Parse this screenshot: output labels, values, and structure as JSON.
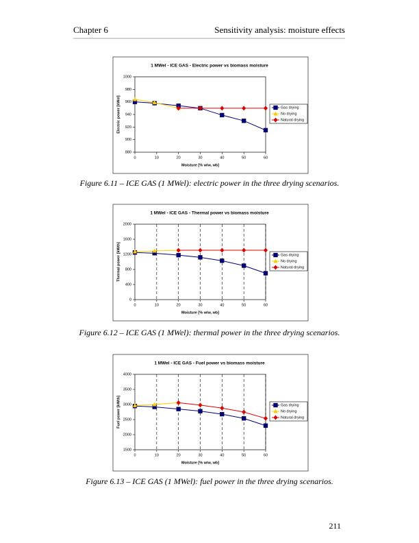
{
  "header": {
    "chapter": "Chapter 6",
    "section": "Sensitivity analysis: moisture effects"
  },
  "chart_data": [
    {
      "type": "line",
      "title": "1 MWel - ICE GAS - Electric power vs biomass moisture",
      "xlabel": "Moisture [% w/w, wb]",
      "ylabel": "Electric power [kWel]",
      "x": [
        0,
        9,
        20,
        30,
        40,
        50,
        60
      ],
      "xlim": [
        0,
        60
      ],
      "xticks": [
        0,
        10,
        20,
        30,
        40,
        50,
        60
      ],
      "ylim": [
        880,
        1000
      ],
      "yticks": [
        880,
        900,
        920,
        940,
        960,
        980,
        1000
      ],
      "xgrid": false,
      "legend": "right",
      "series": [
        {
          "name": "Gas drying",
          "color": "#000080",
          "marker": "square",
          "values": [
            960,
            958,
            954,
            950,
            939,
            930,
            915
          ]
        },
        {
          "name": "No drying",
          "color": "#ffcc00",
          "marker": "triangle",
          "values": [
            964,
            959,
            950,
            null,
            null,
            null,
            null
          ]
        },
        {
          "name": "Natural drying",
          "color": "#e00000",
          "marker": "diamond",
          "values": [
            null,
            null,
            950,
            950,
            950,
            950,
            950
          ]
        }
      ]
    },
    {
      "type": "line",
      "title": "1 MWel - ICE GAS - Thermal power vs biomass moisture",
      "xlabel": "Moisture [% w/w, wb]",
      "ylabel": "Thermal power [kWth]",
      "x": [
        0,
        9,
        20,
        30,
        40,
        50,
        60
      ],
      "xlim": [
        0,
        60
      ],
      "xticks": [
        0,
        10,
        20,
        30,
        40,
        50,
        60
      ],
      "ylim": [
        0,
        2000
      ],
      "yticks": [
        0,
        400,
        800,
        1200,
        1600,
        2000
      ],
      "xgrid": true,
      "legend": "right",
      "series": [
        {
          "name": "Gas drying",
          "color": "#000080",
          "marker": "square",
          "values": [
            1250,
            1230,
            1180,
            1120,
            1030,
            900,
            700
          ]
        },
        {
          "name": "No drying",
          "color": "#ffcc00",
          "marker": "triangle",
          "values": [
            1270,
            1290,
            1310,
            null,
            null,
            null,
            null
          ]
        },
        {
          "name": "Natural drying",
          "color": "#e00000",
          "marker": "diamond",
          "values": [
            null,
            null,
            1310,
            1310,
            1310,
            1310,
            1310
          ]
        }
      ]
    },
    {
      "type": "line",
      "title": "1 MWel - ICE GAS - Fuel power vs biomass moisture",
      "xlabel": "Moisture [% w/w, wb]",
      "ylabel": "Fuel power [kWth]",
      "x": [
        0,
        9,
        20,
        30,
        40,
        50,
        60
      ],
      "xlim": [
        0,
        60
      ],
      "xticks": [
        0,
        10,
        20,
        30,
        40,
        50,
        60
      ],
      "ylim": [
        1500,
        4000
      ],
      "yticks": [
        1500,
        2000,
        2500,
        3000,
        3500,
        4000
      ],
      "xgrid": true,
      "legend": "right",
      "series": [
        {
          "name": "Gas drying",
          "color": "#000080",
          "marker": "square",
          "values": [
            2950,
            2920,
            2850,
            2780,
            2680,
            2540,
            2300
          ]
        },
        {
          "name": "No drying",
          "color": "#ffcc00",
          "marker": "triangle",
          "values": [
            2970,
            3000,
            3060,
            null,
            null,
            null,
            null
          ]
        },
        {
          "name": "Natural drying",
          "color": "#e00000",
          "marker": "diamond",
          "values": [
            null,
            null,
            3060,
            2980,
            2880,
            2750,
            2540
          ]
        }
      ]
    }
  ],
  "captions": [
    "Figure 6.11 – ICE GAS (1 MWel): electric power in the three drying scenarios.",
    "Figure 6.12 – ICE GAS (1 MWel): thermal power in the three drying scenarios.",
    "Figure 6.13 – ICE GAS (1 MWel): fuel power in the three drying scenarios."
  ],
  "page_number": "211"
}
